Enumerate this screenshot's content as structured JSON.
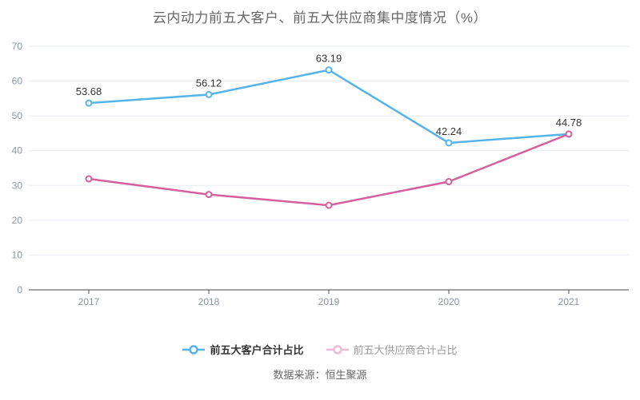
{
  "title": "云内动力前五大客户、前五大供应商集中度情况（%）",
  "source": "数据来源：恒生聚源",
  "legend": {
    "items": [
      {
        "label": "前五大客户合计占比",
        "color": "#54b4e9",
        "icon_opacity": 1
      },
      {
        "label": "前五大供应商合计占比",
        "color": "#d55f9d",
        "icon_opacity": 0.42
      }
    ]
  },
  "chart_data": {
    "type": "line",
    "title": "云内动力前五大客户、前五大供应商集中度情况（%）",
    "categories": [
      "2017",
      "2018",
      "2019",
      "2020",
      "2021"
    ],
    "series": [
      {
        "name": "前五大客户合计占比",
        "color": "#54b4e9",
        "values": [
          53.68,
          56.12,
          63.19,
          42.24,
          44.78
        ],
        "labels": [
          "53.68",
          "56.12",
          "63.19",
          "42.24",
          "44.78"
        ],
        "show_labels": true
      },
      {
        "name": "前五大供应商合计占比",
        "color": "#d55f9d",
        "values": [
          31.9,
          27.4,
          24.3,
          31.1,
          44.78
        ],
        "labels": [],
        "show_labels": false
      }
    ],
    "ylim": [
      0,
      70
    ],
    "y_ticks": [
      0,
      10,
      20,
      30,
      40,
      50,
      60,
      70
    ],
    "grid": true,
    "legend_position": "bottom",
    "colors": {
      "grid_line": "#e6ecf2",
      "axis_line": "#4a4a4a",
      "tick_label": "#8a95a3",
      "data_label": "#333333"
    }
  }
}
